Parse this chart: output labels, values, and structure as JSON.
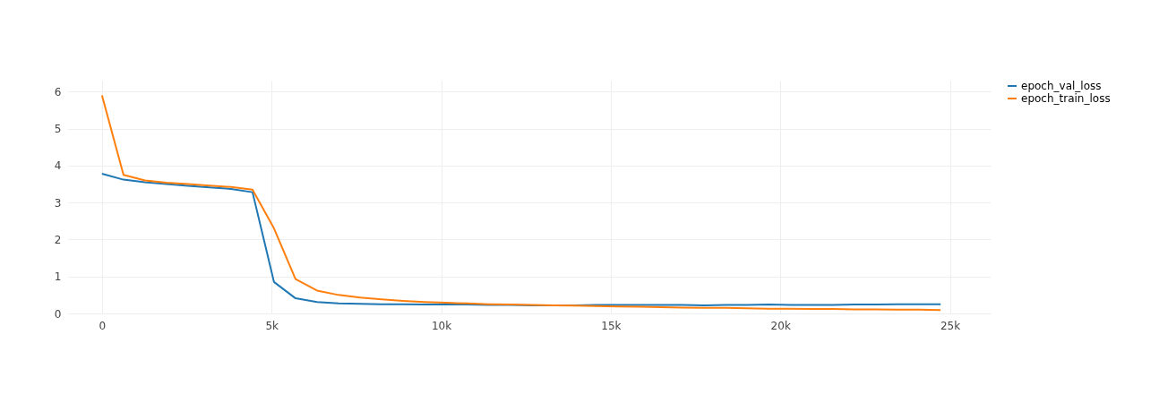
{
  "chart_data": {
    "type": "line",
    "x": [
      0,
      634,
      1268,
      1902,
      2536,
      3170,
      3804,
      4438,
      5072,
      5706,
      6340,
      6974,
      7608,
      8242,
      8876,
      9510,
      10144,
      10778,
      11412,
      12046,
      12680,
      13314,
      13948,
      14582,
      15216,
      15850,
      16484,
      17118,
      17752,
      18386,
      19020,
      19654,
      20288,
      20922,
      21556,
      22190,
      22824,
      23458,
      24092,
      24726
    ],
    "series": [
      {
        "name": "epoch_val_loss",
        "color": "#1f77b4",
        "values": [
          3.78,
          3.62,
          3.55,
          3.5,
          3.45,
          3.41,
          3.37,
          3.28,
          0.85,
          0.41,
          0.31,
          0.27,
          0.26,
          0.25,
          0.25,
          0.24,
          0.24,
          0.24,
          0.23,
          0.23,
          0.22,
          0.22,
          0.22,
          0.23,
          0.23,
          0.23,
          0.23,
          0.23,
          0.22,
          0.23,
          0.23,
          0.24,
          0.23,
          0.23,
          0.23,
          0.24,
          0.24,
          0.25,
          0.25,
          0.25
        ]
      },
      {
        "name": "epoch_train_loss",
        "color": "#ff7f0e",
        "values": [
          5.9,
          3.75,
          3.6,
          3.54,
          3.5,
          3.46,
          3.42,
          3.35,
          2.3,
          0.93,
          0.62,
          0.5,
          0.43,
          0.38,
          0.34,
          0.31,
          0.29,
          0.27,
          0.25,
          0.24,
          0.23,
          0.22,
          0.21,
          0.2,
          0.19,
          0.18,
          0.17,
          0.16,
          0.15,
          0.15,
          0.14,
          0.13,
          0.13,
          0.12,
          0.12,
          0.11,
          0.11,
          0.1,
          0.1,
          0.09
        ]
      }
    ],
    "xlim": [
      -1000,
      26200
    ],
    "ylim": [
      0,
      6.3
    ],
    "xticks": [
      0,
      {
        "value": 5000,
        "label": "5k"
      },
      {
        "value": 10000,
        "label": "10k"
      },
      {
        "value": 15000,
        "label": "15k"
      },
      {
        "value": 20000,
        "label": "20k"
      },
      {
        "value": 25000,
        "label": "25k"
      }
    ],
    "yticks": [
      0,
      1,
      2,
      3,
      4,
      5,
      6
    ],
    "grid": true,
    "legend": "top right",
    "line_style": "solid",
    "marker": "none"
  }
}
